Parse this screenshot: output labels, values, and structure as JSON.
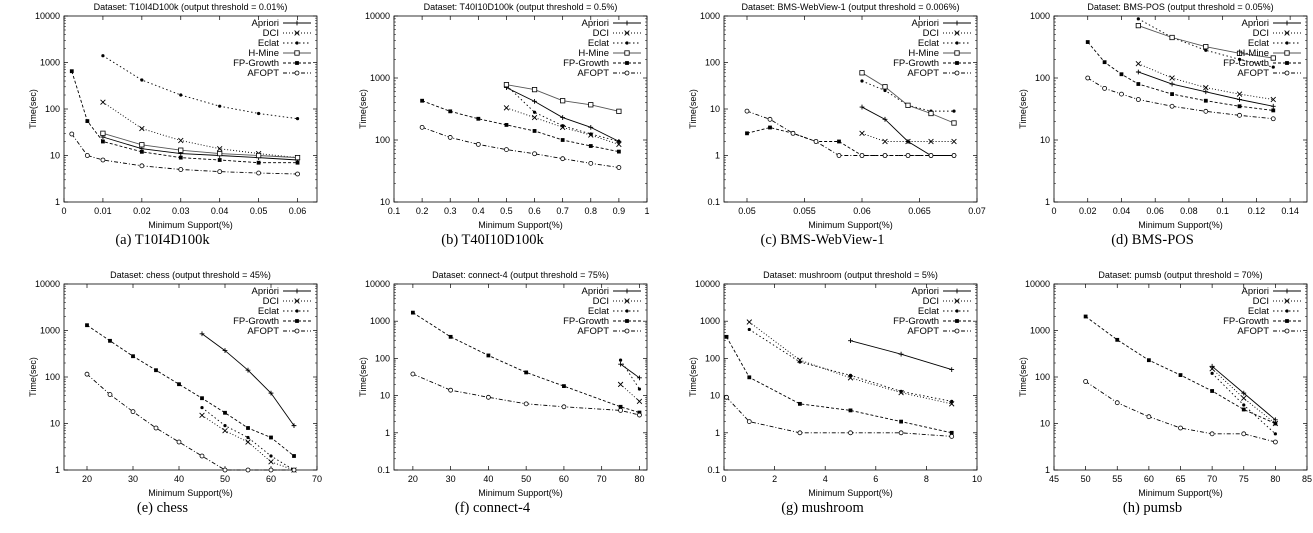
{
  "chart_data": [
    {
      "type": "line",
      "title": "Dataset: T10I4D100k (output threshold = 0.01%)",
      "xlabel": "Minimum Support(%)",
      "ylabel": "Time(sec)",
      "xscale": "linear",
      "yscale": "log",
      "xlim": [
        0,
        0.065
      ],
      "ylim": [
        1,
        10000
      ],
      "xticks": [
        "0",
        "0.01",
        "0.02",
        "0.03",
        "0.04",
        "0.05",
        "0.06"
      ],
      "yticks": [
        "1",
        "10",
        "100",
        "1000",
        "10000"
      ],
      "grid": false,
      "legend_position": "top-right",
      "caption": "(a) T10I4D100k",
      "series": [
        {
          "name": "Apriori",
          "x": [
            0.01,
            0.02,
            0.03,
            0.04,
            0.05,
            0.06
          ],
          "y": [
            25,
            14,
            11,
            10,
            9,
            8
          ]
        },
        {
          "name": "DCI",
          "x": [
            0.01,
            0.02,
            0.03,
            0.04,
            0.05,
            0.06
          ],
          "y": [
            140,
            38,
            21,
            14,
            11,
            9
          ]
        },
        {
          "name": "Eclat",
          "x": [
            0.01,
            0.02,
            0.03,
            0.04,
            0.05,
            0.06
          ],
          "y": [
            1400,
            420,
            200,
            115,
            80,
            62
          ]
        },
        {
          "name": "H-Mine",
          "x": [
            0.01,
            0.02,
            0.03,
            0.04,
            0.05,
            0.06
          ],
          "y": [
            30,
            17,
            13,
            11,
            10,
            9
          ]
        },
        {
          "name": "FP-Growth",
          "x": [
            0.002,
            0.006,
            0.01,
            0.02,
            0.03,
            0.04,
            0.05,
            0.06
          ],
          "y": [
            650,
            55,
            20,
            12,
            9,
            8,
            7,
            7
          ]
        },
        {
          "name": "AFOPT",
          "x": [
            0.002,
            0.006,
            0.01,
            0.02,
            0.03,
            0.04,
            0.05,
            0.06
          ],
          "y": [
            29,
            10,
            8,
            6,
            5,
            4.5,
            4.2,
            4
          ]
        }
      ]
    },
    {
      "type": "line",
      "title": "Dataset: T40I10D100k (output threshold = 0.5%)",
      "xlabel": "Minimum Support(%)",
      "ylabel": "Time(sec)",
      "xscale": "linear",
      "yscale": "log",
      "xlim": [
        0.1,
        1
      ],
      "ylim": [
        10,
        10000
      ],
      "xticks": [
        "0.1",
        "0.2",
        "0.3",
        "0.4",
        "0.5",
        "0.6",
        "0.7",
        "0.8",
        "0.9",
        "1"
      ],
      "yticks": [
        "10",
        "100",
        "1000",
        "10000"
      ],
      "grid": false,
      "legend_position": "top-right",
      "caption": "(b) T40I10D100k",
      "series": [
        {
          "name": "Apriori",
          "x": [
            0.5,
            0.6,
            0.7,
            0.8,
            0.9
          ],
          "y": [
            700,
            420,
            230,
            160,
            95
          ]
        },
        {
          "name": "DCI",
          "x": [
            0.5,
            0.6,
            0.7,
            0.8,
            0.9
          ],
          "y": [
            330,
            230,
            160,
            120,
            85
          ]
        },
        {
          "name": "Eclat",
          "x": [
            0.5,
            0.6,
            0.7,
            0.8,
            0.9
          ],
          "y": [
            760,
            280,
            170,
            125,
            95
          ]
        },
        {
          "name": "H-Mine",
          "x": [
            0.5,
            0.6,
            0.7,
            0.8,
            0.9
          ],
          "y": [
            780,
            650,
            430,
            370,
            290
          ]
        },
        {
          "name": "FP-Growth",
          "x": [
            0.2,
            0.3,
            0.4,
            0.5,
            0.6,
            0.7,
            0.8,
            0.9
          ],
          "y": [
            430,
            290,
            220,
            175,
            140,
            100,
            80,
            65
          ]
        },
        {
          "name": "AFOPT",
          "x": [
            0.2,
            0.3,
            0.4,
            0.5,
            0.6,
            0.7,
            0.8,
            0.9
          ],
          "y": [
            160,
            110,
            85,
            70,
            60,
            50,
            42,
            36
          ]
        }
      ]
    },
    {
      "type": "line",
      "title": "Dataset: BMS-WebView-1 (output threshold = 0.006%)",
      "xlabel": "Minimum Support(%)",
      "ylabel": "Time(sec)",
      "xscale": "linear",
      "yscale": "log",
      "xlim": [
        0.048,
        0.07
      ],
      "ylim": [
        0.1,
        1000
      ],
      "xticks": [
        "0.05",
        "0.055",
        "0.06",
        "0.065",
        "0.07"
      ],
      "yticks": [
        "0.1",
        "1",
        "10",
        "100",
        "1000"
      ],
      "grid": false,
      "legend_position": "top-right",
      "caption": "(c) BMS-WebView-1",
      "series": [
        {
          "name": "Apriori",
          "x": [
            0.06,
            0.062,
            0.064,
            0.066,
            0.068
          ],
          "y": [
            11,
            6,
            2,
            1,
            1
          ]
        },
        {
          "name": "DCI",
          "x": [
            0.06,
            0.062,
            0.064,
            0.066,
            0.068
          ],
          "y": [
            3,
            2,
            2,
            2,
            2
          ]
        },
        {
          "name": "Eclat",
          "x": [
            0.06,
            0.062,
            0.064,
            0.066,
            0.068
          ],
          "y": [
            40,
            25,
            12,
            9,
            9
          ]
        },
        {
          "name": "H-Mine",
          "x": [
            0.06,
            0.062,
            0.064,
            0.066,
            0.068
          ],
          "y": [
            60,
            30,
            12,
            8,
            5
          ]
        },
        {
          "name": "FP-Growth",
          "x": [
            0.05,
            0.052,
            0.054,
            0.056,
            0.058,
            0.06,
            0.062,
            0.064,
            0.066,
            0.068
          ],
          "y": [
            3,
            4,
            3,
            2,
            2,
            1,
            1,
            1,
            1,
            1
          ]
        },
        {
          "name": "AFOPT",
          "x": [
            0.05,
            0.052,
            0.054,
            0.056,
            0.058,
            0.06,
            0.062,
            0.064,
            0.066,
            0.068
          ],
          "y": [
            9,
            6,
            3,
            2,
            1,
            1,
            1,
            1,
            1,
            1
          ]
        }
      ]
    },
    {
      "type": "line",
      "title": "Dataset: BMS-POS (output threshold = 0.05%)",
      "xlabel": "Minimum Support(%)",
      "ylabel": "Time(sec)",
      "xscale": "linear",
      "yscale": "log",
      "xlim": [
        0,
        0.15
      ],
      "ylim": [
        1,
        1000
      ],
      "xticks": [
        "0",
        "0.02",
        "0.04",
        "0.06",
        "0.08",
        "0.1",
        "0.12",
        "0.14"
      ],
      "yticks": [
        "1",
        "10",
        "100",
        "1000"
      ],
      "grid": false,
      "legend_position": "top-right",
      "caption": "(d) BMS-POS",
      "series": [
        {
          "name": "Apriori",
          "x": [
            0.05,
            0.07,
            0.09,
            0.11,
            0.13
          ],
          "y": [
            125,
            80,
            60,
            45,
            35
          ]
        },
        {
          "name": "DCI",
          "x": [
            0.05,
            0.07,
            0.09,
            0.11,
            0.13
          ],
          "y": [
            170,
            100,
            70,
            55,
            45
          ]
        },
        {
          "name": "Eclat",
          "x": [
            0.05,
            0.07,
            0.09,
            0.11,
            0.13
          ],
          "y": [
            900,
            450,
            280,
            200,
            150
          ]
        },
        {
          "name": "H-Mine",
          "x": [
            0.05,
            0.07,
            0.09,
            0.11,
            0.13
          ],
          "y": [
            700,
            450,
            320,
            250,
            210
          ]
        },
        {
          "name": "FP-Growth",
          "x": [
            0.02,
            0.03,
            0.04,
            0.05,
            0.07,
            0.09,
            0.11,
            0.13
          ],
          "y": [
            380,
            180,
            115,
            80,
            55,
            43,
            35,
            30
          ]
        },
        {
          "name": "AFOPT",
          "x": [
            0.02,
            0.03,
            0.04,
            0.05,
            0.07,
            0.09,
            0.11,
            0.13
          ],
          "y": [
            100,
            68,
            55,
            45,
            35,
            29,
            25,
            22
          ]
        }
      ]
    },
    {
      "type": "line",
      "title": "Dataset: chess (output threshold = 45%)",
      "xlabel": "Minimum Support(%)",
      "ylabel": "Time(sec)",
      "xscale": "linear",
      "yscale": "log",
      "xlim": [
        15,
        70
      ],
      "ylim": [
        1,
        10000
      ],
      "xticks": [
        "20",
        "30",
        "40",
        "50",
        "60",
        "70"
      ],
      "yticks": [
        "1",
        "10",
        "100",
        "1000",
        "10000"
      ],
      "grid": false,
      "legend_position": "top-right",
      "caption": "(e) chess",
      "series": [
        {
          "name": "Apriori",
          "x": [
            45,
            50,
            55,
            60,
            65
          ],
          "y": [
            850,
            370,
            140,
            45,
            9
          ]
        },
        {
          "name": "DCI",
          "x": [
            45,
            50,
            55,
            60,
            65
          ],
          "y": [
            15,
            7,
            4,
            1.5,
            1
          ]
        },
        {
          "name": "Eclat",
          "x": [
            45,
            50,
            55,
            60,
            65
          ],
          "y": [
            22,
            9,
            5,
            2,
            1
          ]
        },
        {
          "name": "FP-Growth",
          "x": [
            20,
            25,
            30,
            35,
            40,
            45,
            50,
            55,
            60,
            65
          ],
          "y": [
            1300,
            600,
            280,
            140,
            70,
            35,
            17,
            8,
            5,
            2
          ]
        },
        {
          "name": "AFOPT",
          "x": [
            20,
            25,
            30,
            35,
            40,
            45,
            50,
            55,
            60,
            65
          ],
          "y": [
            115,
            42,
            18,
            8,
            4,
            2,
            1,
            1,
            1,
            1
          ]
        }
      ]
    },
    {
      "type": "line",
      "title": "Dataset: connect-4 (output threshold = 75%)",
      "xlabel": "Minimum Support(%)",
      "ylabel": "Time(sec)",
      "xscale": "linear",
      "yscale": "log",
      "xlim": [
        15,
        82
      ],
      "ylim": [
        0.1,
        10000
      ],
      "xticks": [
        "20",
        "30",
        "40",
        "50",
        "60",
        "70",
        "80"
      ],
      "yticks": [
        "0.1",
        "1",
        "10",
        "100",
        "1000",
        "10000"
      ],
      "grid": false,
      "legend_position": "top-right",
      "caption": "(f) connect-4",
      "series": [
        {
          "name": "Apriori",
          "x": [
            75,
            80
          ],
          "y": [
            70,
            30
          ]
        },
        {
          "name": "DCI",
          "x": [
            75,
            80
          ],
          "y": [
            20,
            7
          ]
        },
        {
          "name": "Eclat",
          "x": [
            75,
            80
          ],
          "y": [
            90,
            15
          ]
        },
        {
          "name": "FP-Growth",
          "x": [
            20,
            30,
            40,
            50,
            60,
            75,
            80
          ],
          "y": [
            1700,
            380,
            120,
            42,
            18,
            5,
            3.5
          ]
        },
        {
          "name": "AFOPT",
          "x": [
            20,
            30,
            40,
            50,
            60,
            75,
            80
          ],
          "y": [
            38,
            14,
            9,
            6,
            5,
            4,
            3
          ]
        }
      ]
    },
    {
      "type": "line",
      "title": "Dataset: mushroom (output threshold = 5%)",
      "xlabel": "Minimum Support(%)",
      "ylabel": "Time(sec)",
      "xscale": "linear",
      "yscale": "log",
      "xlim": [
        0,
        10
      ],
      "ylim": [
        0.1,
        10000
      ],
      "xticks": [
        "0",
        "2",
        "4",
        "6",
        "8",
        "10"
      ],
      "yticks": [
        "0.1",
        "1",
        "10",
        "100",
        "1000",
        "10000"
      ],
      "grid": false,
      "legend_position": "top-right",
      "caption": "(g) mushroom",
      "series": [
        {
          "name": "Apriori",
          "x": [
            5,
            7,
            9
          ],
          "y": [
            300,
            130,
            50
          ]
        },
        {
          "name": "DCI",
          "x": [
            1,
            3,
            5,
            7,
            9
          ],
          "y": [
            950,
            90,
            30,
            12,
            6
          ]
        },
        {
          "name": "Eclat",
          "x": [
            1,
            3,
            5,
            7,
            9
          ],
          "y": [
            600,
            80,
            35,
            13,
            7
          ]
        },
        {
          "name": "FP-Growth",
          "x": [
            0.1,
            1,
            3,
            5,
            7,
            9
          ],
          "y": [
            380,
            31,
            6,
            4,
            2,
            1
          ]
        },
        {
          "name": "AFOPT",
          "x": [
            0.1,
            1,
            3,
            5,
            7,
            9
          ],
          "y": [
            9,
            2,
            1,
            1,
            1,
            0.8
          ]
        }
      ]
    },
    {
      "type": "line",
      "title": "Dataset: pumsb (output threshold = 70%)",
      "xlabel": "Minimum Support(%)",
      "ylabel": "Time(sec)",
      "xscale": "linear",
      "yscale": "log",
      "xlim": [
        45,
        85
      ],
      "ylim": [
        1,
        10000
      ],
      "xticks": [
        "45",
        "50",
        "55",
        "60",
        "65",
        "70",
        "75",
        "80",
        "85"
      ],
      "yticks": [
        "1",
        "10",
        "100",
        "1000",
        "10000"
      ],
      "grid": false,
      "legend_position": "top-right",
      "caption": "(h) pumsb",
      "series": [
        {
          "name": "Apriori",
          "x": [
            70,
            75,
            80
          ],
          "y": [
            170,
            45,
            12
          ]
        },
        {
          "name": "DCI",
          "x": [
            70,
            75,
            80
          ],
          "y": [
            150,
            35,
            10
          ]
        },
        {
          "name": "Eclat",
          "x": [
            70,
            75,
            80
          ],
          "y": [
            120,
            25,
            6
          ]
        },
        {
          "name": "FP-Growth",
          "x": [
            50,
            55,
            60,
            65,
            70,
            75,
            80
          ],
          "y": [
            2000,
            630,
            230,
            110,
            50,
            20,
            10
          ]
        },
        {
          "name": "AFOPT",
          "x": [
            50,
            55,
            60,
            65,
            70,
            75,
            80
          ],
          "y": [
            80,
            28,
            14,
            8,
            6,
            6,
            4
          ]
        }
      ]
    }
  ]
}
